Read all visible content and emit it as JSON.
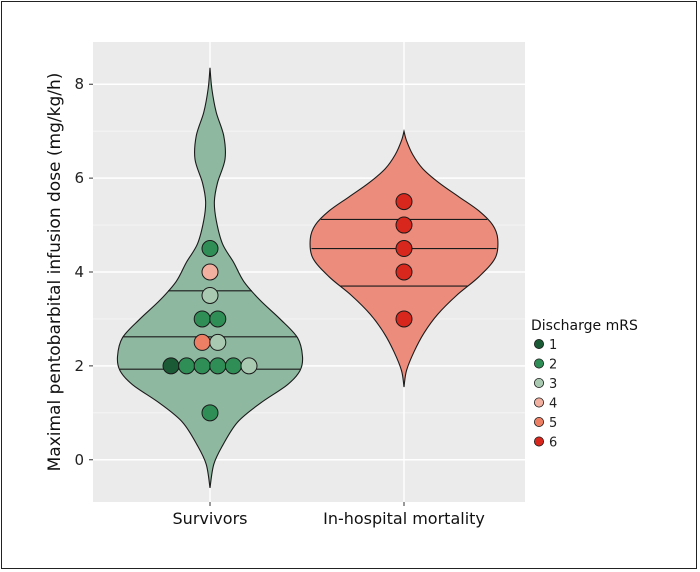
{
  "chart_data": {
    "type": "violin",
    "ylabel": "Maximal pentobarbital infusion dose (mg/kg/h)",
    "xlabel": "",
    "ylim": [
      -0.9,
      8.9
    ],
    "yticks": [
      0,
      2,
      4,
      6,
      8
    ],
    "grid": true,
    "legend": {
      "title": "Discharge mRS",
      "placement": "right",
      "entries": [
        {
          "label": "1",
          "color": "#1a5a34"
        },
        {
          "label": "2",
          "color": "#2f8e56"
        },
        {
          "label": "3",
          "color": "#a9c9b0"
        },
        {
          "label": "4",
          "color": "#f2b0a0"
        },
        {
          "label": "5",
          "color": "#ec7f64"
        },
        {
          "label": "6",
          "color": "#d8281e"
        }
      ]
    },
    "categories": [
      {
        "name": "Survivors",
        "fill": "#8fb8a1",
        "range": [
          -0.6,
          8.35
        ],
        "quantiles": [
          1.93,
          2.62,
          3.6
        ],
        "density_profile": [
          [
            -0.6,
            0.0
          ],
          [
            -0.1,
            0.03
          ],
          [
            0.3,
            0.1
          ],
          [
            0.8,
            0.22
          ],
          [
            1.2,
            0.4
          ],
          [
            1.6,
            0.62
          ],
          [
            1.9,
            0.72
          ],
          [
            2.2,
            0.74
          ],
          [
            2.6,
            0.7
          ],
          [
            3.0,
            0.56
          ],
          [
            3.4,
            0.4
          ],
          [
            3.8,
            0.27
          ],
          [
            4.2,
            0.19
          ],
          [
            4.6,
            0.1
          ],
          [
            5.1,
            0.05
          ],
          [
            5.5,
            0.035
          ],
          [
            5.9,
            0.06
          ],
          [
            6.4,
            0.12
          ],
          [
            6.9,
            0.11
          ],
          [
            7.4,
            0.05
          ],
          [
            7.9,
            0.015
          ],
          [
            8.35,
            0.0
          ]
        ],
        "points": [
          {
            "y": 4.5,
            "mrs": 2
          },
          {
            "y": 4.0,
            "mrs": 4
          },
          {
            "y": 3.5,
            "mrs": 3
          },
          {
            "y": 3.0,
            "mrs": 2
          },
          {
            "y": 3.0,
            "mrs": 2
          },
          {
            "y": 2.5,
            "mrs": 5
          },
          {
            "y": 2.5,
            "mrs": 3
          },
          {
            "y": 2.0,
            "mrs": 1
          },
          {
            "y": 2.0,
            "mrs": 2
          },
          {
            "y": 2.0,
            "mrs": 2
          },
          {
            "y": 2.0,
            "mrs": 2
          },
          {
            "y": 2.0,
            "mrs": 2
          },
          {
            "y": 2.0,
            "mrs": 3
          },
          {
            "y": 1.0,
            "mrs": 2
          }
        ]
      },
      {
        "name": "In-hospital mortality",
        "fill": "#ec8c7c",
        "range": [
          1.55,
          7.0
        ],
        "quantiles": [
          3.7,
          4.5,
          5.12
        ],
        "density_profile": [
          [
            1.55,
            0.0
          ],
          [
            1.9,
            0.02
          ],
          [
            2.3,
            0.08
          ],
          [
            2.7,
            0.16
          ],
          [
            3.1,
            0.27
          ],
          [
            3.5,
            0.42
          ],
          [
            3.9,
            0.6
          ],
          [
            4.3,
            0.73
          ],
          [
            4.7,
            0.75
          ],
          [
            5.0,
            0.71
          ],
          [
            5.3,
            0.6
          ],
          [
            5.6,
            0.44
          ],
          [
            5.9,
            0.28
          ],
          [
            6.2,
            0.15
          ],
          [
            6.5,
            0.07
          ],
          [
            6.8,
            0.02
          ],
          [
            7.0,
            0.0
          ]
        ],
        "points": [
          {
            "y": 5.5,
            "mrs": 6
          },
          {
            "y": 5.0,
            "mrs": 6
          },
          {
            "y": 4.5,
            "mrs": 6
          },
          {
            "y": 4.0,
            "mrs": 6
          },
          {
            "y": 3.0,
            "mrs": 6
          }
        ]
      }
    ]
  }
}
